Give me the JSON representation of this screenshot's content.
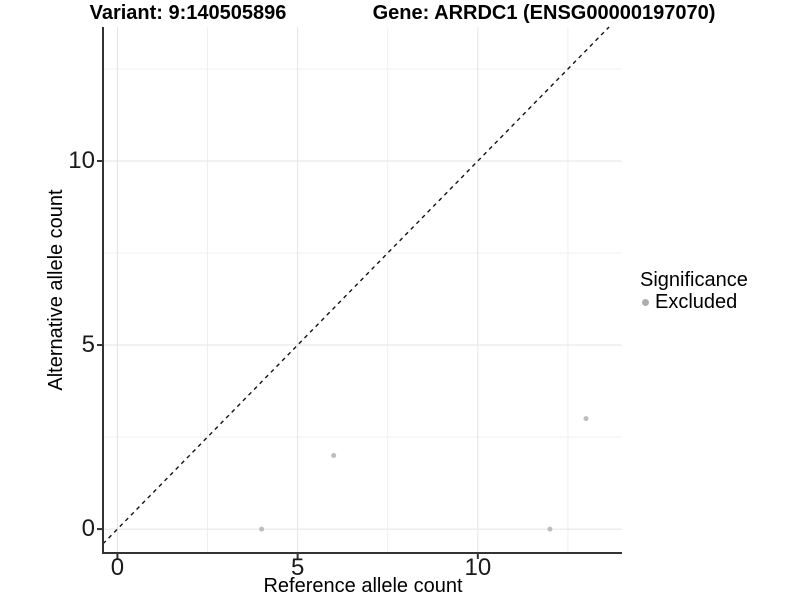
{
  "titles": {
    "variant": "Variant: 9:140505896",
    "gene": "Gene: ARRDC1 (ENSG00000197070)"
  },
  "axes": {
    "x_label": "Reference allele count",
    "y_label": "Alternative allele count",
    "x_tick_labels": [
      "0",
      "5",
      "10"
    ],
    "y_tick_labels": [
      "0",
      "5",
      "10"
    ]
  },
  "legend": {
    "title": "Significance",
    "items": [
      {
        "label": "Excluded",
        "color": "#bdbdbd"
      }
    ]
  },
  "colors": {
    "background": "#ffffff",
    "grid_major": "#e4e4e4",
    "grid_minor": "#efefef",
    "axis_line": "#333333",
    "tick_mark": "#333333",
    "point": "#bdbdbd",
    "reference_line": "#111111",
    "text": "#000000"
  },
  "chart_data": {
    "type": "scatter",
    "title_left": "Variant: 9:140505896",
    "title_right": "Gene: ARRDC1 (ENSG00000197070)",
    "xlabel": "Reference allele count",
    "ylabel": "Alternative allele count",
    "xlim": [
      -0.4,
      14.0
    ],
    "ylim": [
      -0.65,
      13.64
    ],
    "x_major_ticks": [
      0,
      5,
      10
    ],
    "y_major_ticks": [
      0,
      5,
      10
    ],
    "x_minor_gridlines": [
      2.5,
      7.5,
      12.5
    ],
    "y_minor_gridlines": [
      2.5,
      7.5,
      12.5
    ],
    "grid": true,
    "legend_position": "right",
    "series": [
      {
        "name": "Excluded",
        "color": "#bdbdbd",
        "point_radius": 2.5,
        "points": [
          [
            4,
            0
          ],
          [
            6,
            2
          ],
          [
            12,
            0
          ],
          [
            13,
            3
          ]
        ]
      }
    ],
    "reference_line": {
      "type": "identity",
      "slope": 1,
      "intercept": 0,
      "style": "dashed",
      "color": "#111111"
    }
  }
}
